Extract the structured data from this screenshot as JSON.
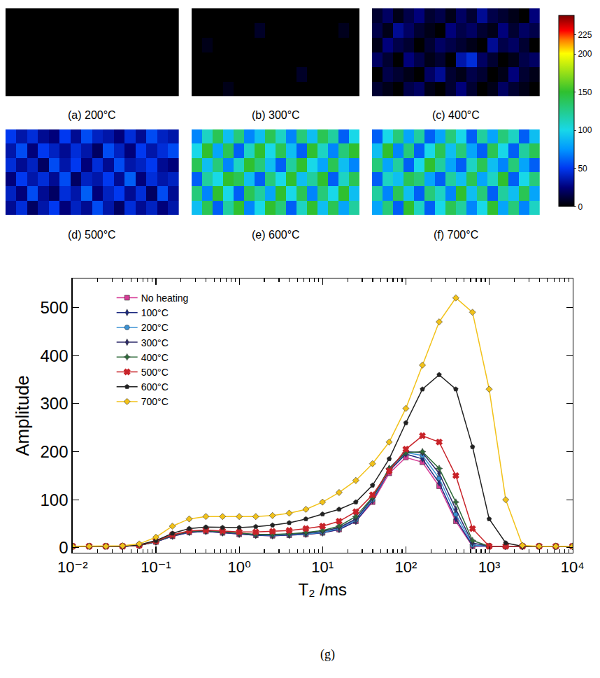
{
  "chart_data": [
    {
      "type": "heatmap",
      "tick_labels": false,
      "colorbar_range": [
        0,
        250
      ],
      "colorbar_ticks": [
        0,
        50,
        100,
        150,
        200,
        225
      ],
      "panels": [
        {
          "caption": "(a) 200°C",
          "values": [
            [
              0,
              0,
              0,
              0,
              0,
              0,
              0,
              0,
              0,
              0,
              0,
              0,
              0,
              0,
              0,
              0
            ],
            [
              0,
              0,
              0,
              0,
              0,
              0,
              0,
              0,
              0,
              0,
              0,
              0,
              0,
              0,
              0,
              0
            ],
            [
              0,
              0,
              0,
              0,
              0,
              0,
              0,
              0,
              0,
              0,
              0,
              0,
              0,
              0,
              0,
              0
            ],
            [
              0,
              0,
              0,
              0,
              0,
              0,
              0,
              0,
              0,
              0,
              0,
              0,
              0,
              0,
              0,
              0
            ],
            [
              0,
              0,
              0,
              0,
              0,
              0,
              0,
              0,
              0,
              0,
              0,
              0,
              0,
              0,
              0,
              0
            ],
            [
              0,
              0,
              0,
              0,
              0,
              0,
              0,
              0,
              0,
              0,
              0,
              0,
              0,
              0,
              0,
              0
            ]
          ]
        },
        {
          "caption": "(b) 300°C",
          "values": [
            [
              0,
              0,
              0,
              5,
              0,
              0,
              0,
              0,
              0,
              0,
              0,
              0,
              0,
              0,
              0,
              0
            ],
            [
              0,
              0,
              0,
              0,
              0,
              0,
              0,
              0,
              0,
              0,
              8,
              0,
              0,
              0,
              0,
              0
            ],
            [
              0,
              0,
              0,
              0,
              0,
              0,
              0,
              0,
              0,
              0,
              0,
              0,
              0,
              0,
              0,
              0
            ],
            [
              0,
              5,
              0,
              0,
              0,
              0,
              0,
              0,
              0,
              0,
              0,
              0,
              0,
              0,
              0,
              0
            ],
            [
              0,
              0,
              0,
              0,
              0,
              0,
              8,
              0,
              0,
              0,
              0,
              0,
              0,
              0,
              6,
              0
            ],
            [
              0,
              0,
              0,
              0,
              0,
              0,
              0,
              0,
              0,
              0,
              0,
              0,
              0,
              0,
              0,
              0
            ]
          ]
        },
        {
          "caption": "(c) 400°C",
          "values": [
            [
              10,
              5,
              0,
              15,
              20,
              5,
              0,
              10,
              25,
              10,
              0,
              5,
              20,
              10,
              5,
              0
            ],
            [
              0,
              15,
              10,
              5,
              0,
              20,
              30,
              10,
              5,
              15,
              10,
              0,
              5,
              25,
              10,
              5
            ],
            [
              20,
              10,
              0,
              25,
              15,
              5,
              10,
              0,
              35,
              45,
              20,
              10,
              0,
              5,
              15,
              20
            ],
            [
              5,
              25,
              15,
              10,
              0,
              10,
              20,
              15,
              10,
              5,
              0,
              30,
              15,
              20,
              10,
              0
            ],
            [
              15,
              5,
              30,
              20,
              10,
              5,
              0,
              25,
              15,
              20,
              10,
              5,
              25,
              10,
              20,
              15
            ],
            [
              10,
              20,
              5,
              15,
              25,
              10,
              15,
              5,
              20,
              10,
              30,
              15,
              10,
              5,
              0,
              25
            ]
          ]
        },
        {
          "caption": "(d) 500°C",
          "values": [
            [
              30,
              45,
              20,
              35,
              50,
              25,
              40,
              30,
              55,
              35,
              20,
              45,
              30,
              40,
              25,
              35
            ],
            [
              40,
              25,
              55,
              30,
              20,
              45,
              35,
              60,
              25,
              40,
              50,
              30,
              45,
              20,
              55,
              30
            ],
            [
              25,
              50,
              35,
              45,
              30,
              55,
              20,
              40,
              35,
              50,
              30,
              60,
              25,
              45,
              35,
              40
            ],
            [
              45,
              30,
              40,
              20,
              55,
              35,
              50,
              25,
              45,
              30,
              55,
              35,
              40,
              50,
              30,
              25
            ],
            [
              35,
              55,
              25,
              50,
              40,
              30,
              45,
              35,
              20,
              55,
              40,
              25,
              50,
              35,
              45,
              55
            ],
            [
              50,
              35,
              45,
              30,
              25,
              50,
              30,
              55,
              40,
              35,
              25,
              45,
              30,
              55,
              40,
              35
            ]
          ]
        },
        {
          "caption": "(e) 600°C",
          "values": [
            [
              90,
              140,
              60,
              120,
              150,
              70,
              100,
              150,
              130,
              60,
              110,
              150,
              90,
              140,
              80,
              120
            ],
            [
              130,
              70,
              150,
              100,
              60,
              140,
              120,
              80,
              150,
              100,
              140,
              70,
              130,
              100,
              150,
              90
            ],
            [
              60,
              120,
              100,
              150,
              140,
              90,
              60,
              130,
              100,
              150,
              90,
              120,
              150,
              60,
              110,
              140
            ],
            [
              140,
              90,
              130,
              70,
              110,
              150,
              130,
              90,
              60,
              120,
              150,
              100,
              80,
              140,
              90,
              70
            ],
            [
              100,
              150,
              80,
              140,
              60,
              110,
              150,
              100,
              140,
              90,
              60,
              150,
              110,
              70,
              130,
              150
            ],
            [
              70,
              110,
              140,
              90,
              130,
              70,
              90,
              140,
              110,
              70,
              130,
              90,
              140,
              120,
              60,
              100
            ]
          ]
        },
        {
          "caption": "(f) 700°C",
          "values": [
            [
              80,
              130,
              60,
              150,
              110,
              60,
              100,
              140,
              120,
              70,
              100,
              150,
              80,
              130,
              70,
              110
            ],
            [
              120,
              70,
              140,
              90,
              60,
              130,
              110,
              70,
              150,
              90,
              130,
              60,
              120,
              90,
              140,
              80
            ],
            [
              60,
              110,
              90,
              140,
              130,
              80,
              60,
              120,
              90,
              140,
              80,
              110,
              150,
              60,
              100,
              130
            ],
            [
              130,
              80,
              120,
              60,
              100,
              150,
              120,
              80,
              60,
              110,
              140,
              90,
              70,
              130,
              80,
              60
            ],
            [
              90,
              150,
              70,
              130,
              60,
              100,
              140,
              90,
              130,
              80,
              60,
              140,
              100,
              60,
              120,
              140
            ],
            [
              60,
              100,
              130,
              80,
              120,
              60,
              80,
              130,
              100,
              60,
              120,
              80,
              130,
              110,
              60,
              90
            ]
          ]
        }
      ]
    },
    {
      "type": "line",
      "caption": "(g)",
      "x_label": "T₂ /ms",
      "y_label": "Amplitude",
      "log": "x",
      "grid": false,
      "legend": "upper left",
      "xlim": [
        0.01,
        10000
      ],
      "ylim": [
        -10,
        560
      ],
      "xticks": [
        {
          "value": 0.01,
          "label": "10⁻²"
        },
        {
          "value": 0.1,
          "label": "10⁻¹"
        },
        {
          "value": 1,
          "label": "10⁰"
        },
        {
          "value": 10,
          "label": "10¹"
        },
        {
          "value": 100,
          "label": "10²"
        },
        {
          "value": 1000,
          "label": "10³"
        },
        {
          "value": 10000,
          "label": "10⁴"
        }
      ],
      "yticks": [
        0,
        100,
        200,
        300,
        400,
        500
      ],
      "x": [
        0.01,
        0.0158,
        0.0251,
        0.0398,
        0.0631,
        0.1,
        0.158,
        0.251,
        0.398,
        0.631,
        1,
        1.58,
        2.51,
        3.98,
        6.31,
        10,
        15.8,
        25.1,
        39.8,
        63.1,
        100,
        158,
        251,
        398,
        631,
        1000,
        1580,
        2510,
        3980,
        6310,
        10000
      ],
      "series": [
        {
          "name": "No heating",
          "color": "#d63c96",
          "marker": "square",
          "values": [
            3,
            3,
            3,
            3,
            5,
            12,
            24,
            32,
            34,
            31,
            28,
            26,
            25,
            26,
            28,
            31,
            38,
            55,
            95,
            155,
            188,
            178,
            128,
            55,
            3,
            3,
            3,
            3,
            3,
            3,
            3
          ]
        },
        {
          "name": "100°C",
          "color": "#1c2a80",
          "marker": "diamond-tall",
          "values": [
            3,
            3,
            3,
            3,
            5,
            12,
            24,
            32,
            34,
            31,
            28,
            26,
            25,
            26,
            28,
            31,
            38,
            55,
            98,
            160,
            195,
            185,
            135,
            60,
            4,
            3,
            3,
            3,
            3,
            3,
            3
          ]
        },
        {
          "name": "200°C",
          "color": "#3b92d4",
          "marker": "circle",
          "values": [
            3,
            3,
            3,
            3,
            5,
            13,
            25,
            33,
            35,
            32,
            29,
            27,
            26,
            27,
            29,
            32,
            40,
            58,
            100,
            163,
            198,
            192,
            145,
            70,
            6,
            3,
            3,
            3,
            3,
            3,
            3
          ]
        },
        {
          "name": "300°C",
          "color": "#2d2a6a",
          "marker": "diamond-tall",
          "values": [
            3,
            3,
            3,
            3,
            5,
            13,
            25,
            33,
            35,
            32,
            29,
            27,
            27,
            28,
            30,
            34,
            42,
            60,
            103,
            165,
            200,
            198,
            155,
            80,
            10,
            3,
            3,
            3,
            3,
            3,
            3
          ]
        },
        {
          "name": "400°C",
          "color": "#2e6b3a",
          "marker": "star-diamond",
          "values": [
            3,
            3,
            3,
            3,
            5,
            13,
            26,
            34,
            36,
            33,
            30,
            28,
            28,
            29,
            32,
            36,
            45,
            65,
            105,
            165,
            198,
            200,
            165,
            95,
            15,
            3,
            3,
            3,
            3,
            3,
            3
          ]
        },
        {
          "name": "500°C",
          "color": "#c8242a",
          "marker": "x",
          "values": [
            3,
            3,
            3,
            3,
            5,
            14,
            27,
            35,
            37,
            35,
            33,
            33,
            34,
            36,
            40,
            45,
            55,
            75,
            110,
            160,
            205,
            233,
            220,
            150,
            40,
            3,
            3,
            3,
            3,
            3,
            3
          ]
        },
        {
          "name": "600°C",
          "color": "#222222",
          "marker": "pentagon",
          "values": [
            3,
            3,
            3,
            3,
            6,
            15,
            30,
            40,
            43,
            42,
            42,
            44,
            47,
            52,
            60,
            70,
            80,
            95,
            130,
            185,
            260,
            330,
            360,
            330,
            210,
            60,
            10,
            3,
            3,
            3,
            3
          ]
        },
        {
          "name": "700°C",
          "color": "#f2c21a",
          "marker": "diamond",
          "values": [
            3,
            3,
            3,
            4,
            8,
            22,
            45,
            60,
            65,
            65,
            65,
            65,
            67,
            72,
            80,
            95,
            115,
            140,
            175,
            220,
            290,
            380,
            470,
            520,
            490,
            330,
            100,
            5,
            3,
            3,
            3
          ]
        }
      ]
    }
  ]
}
